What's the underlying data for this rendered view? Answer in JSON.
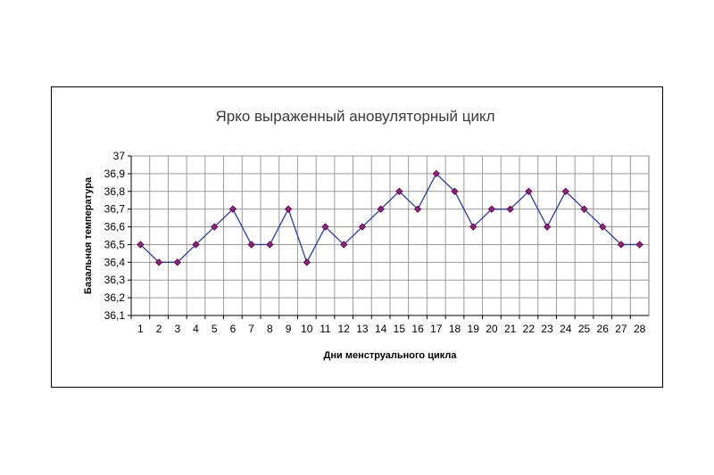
{
  "chart_data": {
    "type": "line",
    "title": "Ярко выраженный ановуляторный цикл",
    "xlabel": "Дни менструального цикла",
    "ylabel": "Базальная температура",
    "x": [
      1,
      2,
      3,
      4,
      5,
      6,
      7,
      8,
      9,
      10,
      11,
      12,
      13,
      14,
      15,
      16,
      17,
      18,
      19,
      20,
      21,
      22,
      23,
      24,
      25,
      26,
      27,
      28
    ],
    "x_tick_labels": [
      "1",
      "2",
      "3",
      "4",
      "5",
      "6",
      "7",
      "8",
      "9",
      "10",
      "11",
      "12",
      "13",
      "14",
      "15",
      "16",
      "17",
      "18",
      "19",
      "20",
      "21",
      "22",
      "23",
      "24",
      "25",
      "26",
      "27",
      "28"
    ],
    "y": [
      36.5,
      36.4,
      36.4,
      36.5,
      36.6,
      36.7,
      36.5,
      36.5,
      36.7,
      36.4,
      36.6,
      36.5,
      36.6,
      36.7,
      36.8,
      36.7,
      36.9,
      36.8,
      36.6,
      36.7,
      36.7,
      36.8,
      36.6,
      36.8,
      36.7,
      36.6,
      36.5,
      36.5
    ],
    "ylim": [
      36.1,
      37
    ],
    "y_tick_values": [
      36.1,
      36.2,
      36.3,
      36.4,
      36.5,
      36.6,
      36.7,
      36.8,
      36.9,
      37
    ],
    "y_tick_labels": [
      "36,1",
      "36,2",
      "36,3",
      "36,4",
      "36,5",
      "36,6",
      "36,7",
      "36,8",
      "36,9",
      "37"
    ],
    "grid": true,
    "line_color": "#2a3aa8",
    "marker_color": "#9b1b7e"
  }
}
